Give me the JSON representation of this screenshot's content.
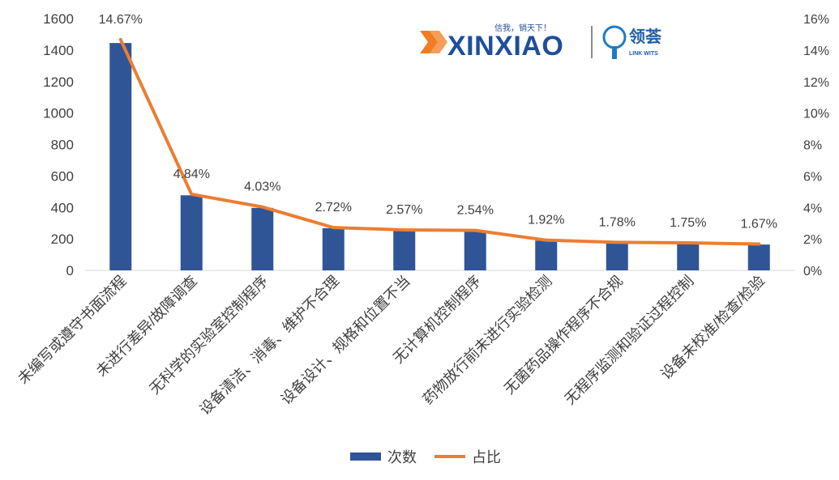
{
  "logo": {
    "brand": "XINXIAO",
    "slogan": "信我，销天下！",
    "partner": "领荟",
    "partner_sub": "LINK WITS"
  },
  "legend": {
    "bar_label": "次数",
    "line_label": "占比",
    "bar_color": "#2f5597",
    "line_color": "#ed7d31"
  },
  "chart_data": {
    "type": "bar",
    "categories": [
      "未编写或遵守书面流程",
      "未进行差异/故障调查",
      "无科学的实验室控制程序",
      "设备清洁、消毒、维护不合理",
      "设备设计、规格和位置不当",
      "无计算机控制程序",
      "药物放行前未进行实验检测",
      "无菌药品操作程序不合规",
      "无程序监测和验证过程控制",
      "设备未校准/检查/检验"
    ],
    "series": [
      {
        "name": "次数",
        "type": "bar",
        "axis": "left",
        "values": [
          1445,
          477,
          397,
          268,
          253,
          250,
          189,
          175,
          172,
          164
        ]
      },
      {
        "name": "占比",
        "type": "line",
        "axis": "right",
        "values": [
          14.67,
          4.84,
          4.03,
          2.72,
          2.57,
          2.54,
          1.92,
          1.78,
          1.75,
          1.67
        ],
        "labels": [
          "14.67%",
          "4.84%",
          "4.03%",
          "2.72%",
          "2.57%",
          "2.54%",
          "1.92%",
          "1.78%",
          "1.75%",
          "1.67%"
        ]
      }
    ],
    "y_left": {
      "min": 0,
      "max": 1600,
      "ticks": [
        "0",
        "200",
        "400",
        "600",
        "800",
        "1000",
        "1200",
        "1400",
        "1600"
      ]
    },
    "y_right": {
      "min": 0,
      "max": 16,
      "ticks": [
        "0%",
        "2%",
        "4%",
        "6%",
        "8%",
        "10%",
        "12%",
        "14%",
        "16%"
      ]
    },
    "grid": false,
    "legend_position": "bottom"
  }
}
